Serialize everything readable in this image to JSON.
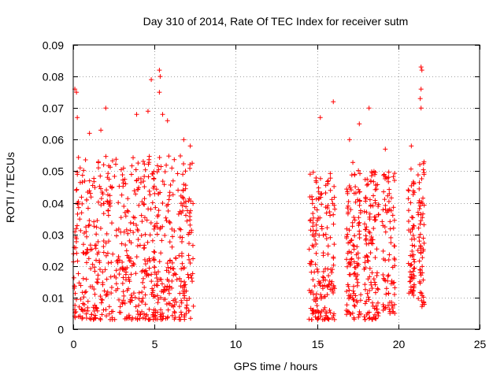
{
  "chart_data": {
    "type": "scatter",
    "title": "Day 310 of 2014, Rate Of TEC Index for receiver sutm",
    "xlabel": "GPS time / hours",
    "ylabel": "ROTI / TECUs",
    "xlim": [
      0,
      25
    ],
    "ylim": [
      0,
      0.09
    ],
    "xticks": [
      0,
      5,
      10,
      15,
      20,
      25
    ],
    "xtick_labels": [
      "0",
      "5",
      "10",
      "15",
      "20",
      "25"
    ],
    "yticks": [
      0,
      0.01,
      0.02,
      0.03,
      0.04,
      0.05,
      0.06,
      0.07,
      0.08,
      0.09
    ],
    "ytick_labels": [
      "0",
      "0.01",
      "0.02",
      "0.03",
      "0.04",
      "0.05",
      "0.06",
      "0.07",
      "0.08",
      "0.09"
    ],
    "grid": true,
    "marker": "+",
    "color": "#ff0000",
    "series": [
      {
        "name": "ROTI",
        "segments": [
          {
            "x_start": 0.0,
            "x_end": 7.4,
            "y_min": 0.003,
            "y_max": 0.055,
            "density": "high"
          },
          {
            "x_start": 14.5,
            "x_end": 16.1,
            "y_min": 0.003,
            "y_max": 0.05,
            "density": "high"
          },
          {
            "x_start": 16.8,
            "x_end": 17.7,
            "y_min": 0.003,
            "y_max": 0.053,
            "density": "high"
          },
          {
            "x_start": 17.9,
            "x_end": 18.8,
            "y_min": 0.003,
            "y_max": 0.05,
            "density": "high"
          },
          {
            "x_start": 19.0,
            "x_end": 19.8,
            "y_min": 0.005,
            "y_max": 0.05,
            "density": "medium"
          },
          {
            "x_start": 20.6,
            "x_end": 21.0,
            "y_min": 0.01,
            "y_max": 0.052,
            "density": "medium"
          },
          {
            "x_start": 21.2,
            "x_end": 21.6,
            "y_min": 0.007,
            "y_max": 0.055,
            "density": "medium"
          }
        ],
        "peaks": [
          {
            "x": 0.1,
            "y": 0.076
          },
          {
            "x": 0.2,
            "y": 0.075
          },
          {
            "x": 0.25,
            "y": 0.067
          },
          {
            "x": 1.0,
            "y": 0.062
          },
          {
            "x": 1.7,
            "y": 0.063
          },
          {
            "x": 2.0,
            "y": 0.07
          },
          {
            "x": 3.9,
            "y": 0.068
          },
          {
            "x": 4.6,
            "y": 0.069
          },
          {
            "x": 4.8,
            "y": 0.079
          },
          {
            "x": 5.3,
            "y": 0.082
          },
          {
            "x": 5.35,
            "y": 0.08
          },
          {
            "x": 5.3,
            "y": 0.075
          },
          {
            "x": 5.5,
            "y": 0.068
          },
          {
            "x": 5.8,
            "y": 0.066
          },
          {
            "x": 6.8,
            "y": 0.06
          },
          {
            "x": 7.2,
            "y": 0.058
          },
          {
            "x": 15.2,
            "y": 0.067
          },
          {
            "x": 16.0,
            "y": 0.072
          },
          {
            "x": 17.0,
            "y": 0.06
          },
          {
            "x": 17.6,
            "y": 0.065
          },
          {
            "x": 18.2,
            "y": 0.07
          },
          {
            "x": 19.2,
            "y": 0.057
          },
          {
            "x": 20.8,
            "y": 0.058
          },
          {
            "x": 21.4,
            "y": 0.083
          },
          {
            "x": 21.45,
            "y": 0.082
          },
          {
            "x": 21.4,
            "y": 0.076
          },
          {
            "x": 21.35,
            "y": 0.073
          },
          {
            "x": 21.4,
            "y": 0.07
          }
        ]
      }
    ]
  }
}
